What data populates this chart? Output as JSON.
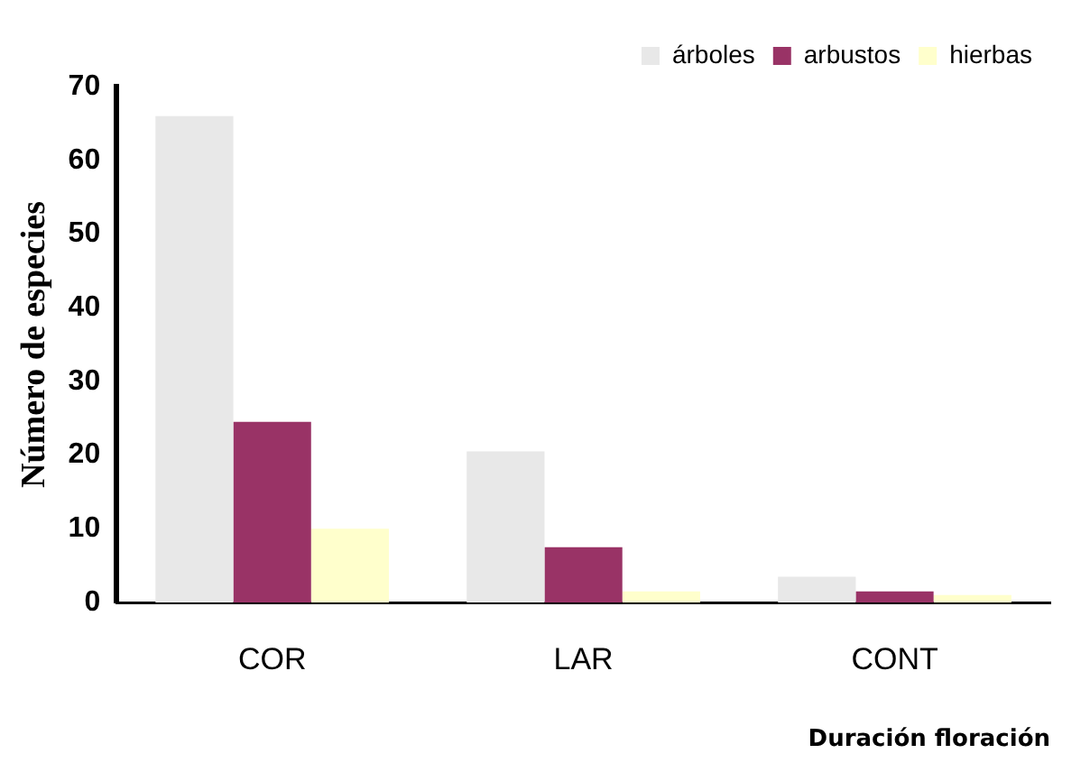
{
  "chart_data": {
    "type": "bar",
    "xlabel": "Duración floración",
    "ylabel": "Número de especies",
    "categories": [
      "COR",
      "LAR",
      "CONT"
    ],
    "series": [
      {
        "name": "árboles",
        "color": "#e8e8e8",
        "values": [
          66,
          20.5,
          3.5
        ]
      },
      {
        "name": "arbustos",
        "color": "#993366",
        "values": [
          24.5,
          7.5,
          1.5
        ]
      },
      {
        "name": "hierbas",
        "color": "#ffffcc",
        "values": [
          10,
          1.5,
          1
        ]
      }
    ],
    "ylim": [
      0,
      70
    ],
    "yticks": [
      0,
      10,
      20,
      30,
      40,
      50,
      60,
      70
    ],
    "grid": false,
    "legend": "top right"
  }
}
